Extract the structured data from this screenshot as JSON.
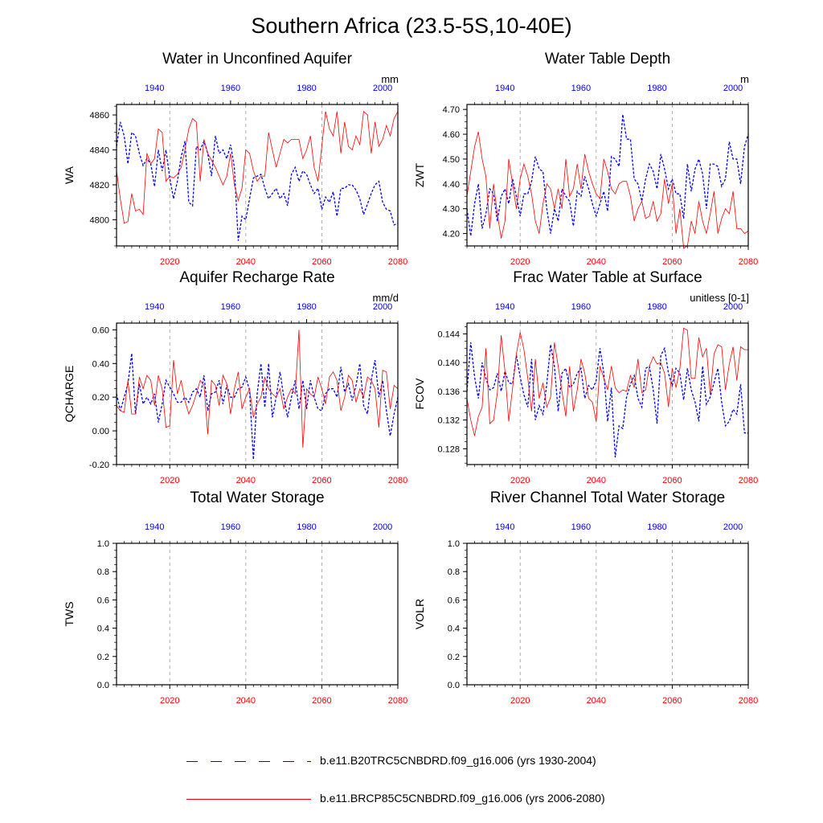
{
  "figure": {
    "title": "Southern Africa (23.5-5S,10-40E)",
    "colors": {
      "historical": "#0000ff",
      "future": "#ff0000",
      "axis": "#000000",
      "refline": "#999999"
    }
  },
  "legend": [
    {
      "label": "b.e11.B20TRC5CNBDRD.f09_g16.006 (yrs 1930-2004)",
      "color": "#0000ff",
      "style": "dashed"
    },
    {
      "label": "b.e11.BRCP85C5CNBDRD.f09_g16.006 (yrs 2006-2080)",
      "color": "#ff0000",
      "style": "solid"
    }
  ],
  "chart_data": [
    {
      "type": "line",
      "title": "Water in Unconfined Aquifer",
      "ylabel": "WA",
      "units": "mm",
      "ylim": [
        4785,
        4866
      ],
      "yticks": [
        4800,
        4820,
        4840,
        4860
      ],
      "yticklabels": [
        "4800",
        "4820",
        "4840",
        "4860"
      ],
      "xlim_bottom": [
        2006,
        2080
      ],
      "xticks_bottom": [
        2020,
        2040,
        2060,
        2080
      ],
      "xlim_top": [
        1930,
        2004
      ],
      "xticks_top": [
        1940,
        1960,
        1980,
        2000
      ],
      "ref_lines_x": [
        2020,
        2040,
        2060
      ],
      "series": [
        {
          "name": "b.e11.B20TRC5CNBDRD.f09_g16.006 (yrs 1930-2004)",
          "axis": "top",
          "color": "#0000ff",
          "dash": true,
          "x_start": 1930,
          "values": [
            4842,
            4856,
            4848,
            4832,
            4850,
            4848,
            4838,
            4831,
            4835,
            4832,
            4819,
            4840,
            4828,
            4840,
            4824,
            4812,
            4822,
            4836,
            4845,
            4810,
            4808,
            4842,
            4840,
            4845,
            4838,
            4825,
            4848,
            4838,
            4840,
            4835,
            4843,
            4830,
            4788,
            4802,
            4800,
            4812,
            4824,
            4825,
            4826,
            4818,
            4812,
            4815,
            4818,
            4812,
            4815,
            4808,
            4826,
            4830,
            4822,
            4828,
            4826,
            4820,
            4815,
            4818,
            4806,
            4813,
            4810,
            4816,
            4802,
            4818,
            4818,
            4820,
            4820,
            4817,
            4812,
            4803,
            4809,
            4815,
            4820,
            4822,
            4810,
            4806,
            4805,
            4797,
            4798
          ]
        },
        {
          "name": "b.e11.BRCP85C5CNBDRD.f09_g16.006 (yrs 2006-2080)",
          "axis": "bottom",
          "color": "#ff0000",
          "dash": false,
          "x_start": 2006,
          "values": [
            4828,
            4812,
            4798,
            4799,
            4815,
            4805,
            4806,
            4803,
            4838,
            4832,
            4835,
            4852,
            4850,
            4822,
            4825,
            4824,
            4826,
            4830,
            4840,
            4852,
            4858,
            4856,
            4822,
            4846,
            4838,
            4834,
            4830,
            4825,
            4820,
            4825,
            4838,
            4820,
            4811,
            4818,
            4840,
            4838,
            4828,
            4822,
            4825,
            4825,
            4850,
            4840,
            4830,
            4838,
            4846,
            4844,
            4846,
            4846,
            4846,
            4835,
            4840,
            4848,
            4830,
            4822,
            4842,
            4862,
            4852,
            4848,
            4862,
            4838,
            4856,
            4842,
            4840,
            4848,
            4843,
            4862,
            4860,
            4838,
            4856,
            4842,
            4846,
            4854,
            4848,
            4858,
            4862
          ]
        }
      ]
    },
    {
      "type": "line",
      "title": "Water Table Depth",
      "ylabel": "ZWT",
      "units": "m",
      "ylim": [
        4.15,
        4.72
      ],
      "yticks": [
        4.2,
        4.3,
        4.4,
        4.5,
        4.6,
        4.7
      ],
      "yticklabels": [
        "4.20",
        "4.30",
        "4.40",
        "4.50",
        "4.60",
        "4.70"
      ],
      "xlim_bottom": [
        2006,
        2080
      ],
      "xticks_bottom": [
        2020,
        2040,
        2060,
        2080
      ],
      "xlim_top": [
        1930,
        2004
      ],
      "xticks_top": [
        1940,
        1960,
        1980,
        2000
      ],
      "ref_lines_x": [
        2020,
        2040,
        2060
      ],
      "series": [
        {
          "name": "b.e11.B20TRC5CNBDRD.f09_g16.006 (yrs 1930-2004)",
          "axis": "top",
          "color": "#0000ff",
          "dash": true,
          "x_start": 1930,
          "values": [
            4.3,
            4.19,
            4.32,
            4.4,
            4.22,
            4.28,
            4.38,
            4.36,
            4.25,
            4.35,
            4.38,
            4.32,
            4.42,
            4.35,
            4.27,
            4.36,
            4.36,
            4.41,
            4.51,
            4.46,
            4.45,
            4.3,
            4.2,
            4.3,
            4.25,
            4.38,
            4.35,
            4.33,
            4.23,
            4.37,
            4.35,
            4.43,
            4.38,
            4.32,
            4.27,
            4.32,
            4.37,
            4.29,
            4.51,
            4.5,
            4.47,
            4.68,
            4.58,
            4.58,
            4.42,
            4.4,
            4.33,
            4.42,
            4.48,
            4.45,
            4.38,
            4.52,
            4.46,
            4.38,
            4.42,
            4.36,
            4.36,
            4.26,
            4.48,
            4.37,
            4.46,
            4.5,
            4.44,
            4.3,
            4.48,
            4.48,
            4.47,
            4.39,
            4.42,
            4.57,
            4.5,
            4.5,
            4.4,
            4.55,
            4.6
          ]
        },
        {
          "name": "b.e11.BRCP85C5CNBDRD.f09_g16.006 (yrs 2006-2080)",
          "axis": "bottom",
          "color": "#ff0000",
          "dash": false,
          "x_start": 2006,
          "values": [
            4.35,
            4.45,
            4.55,
            4.61,
            4.5,
            4.43,
            4.22,
            4.4,
            4.28,
            4.18,
            4.25,
            4.5,
            4.4,
            4.3,
            4.42,
            4.48,
            4.43,
            4.36,
            4.25,
            4.2,
            4.32,
            4.4,
            4.38,
            4.3,
            4.38,
            4.3,
            4.5,
            4.35,
            4.38,
            4.48,
            4.38,
            4.52,
            4.45,
            4.4,
            4.36,
            4.34,
            4.5,
            4.45,
            4.38,
            4.36,
            4.4,
            4.41,
            4.41,
            4.35,
            4.25,
            4.3,
            4.33,
            4.26,
            4.27,
            4.33,
            4.25,
            4.28,
            4.42,
            4.32,
            4.4,
            4.2,
            4.3,
            4.14,
            4.15,
            4.25,
            4.2,
            4.33,
            4.25,
            4.2,
            4.28,
            4.37,
            4.2,
            4.26,
            4.3,
            4.28,
            4.37,
            4.22,
            4.22,
            4.2,
            4.21
          ]
        }
      ]
    },
    {
      "type": "line",
      "title": "Aquifer Recharge Rate",
      "ylabel": "QCHARGE",
      "units": "mm/d",
      "ylim": [
        -0.2,
        0.64
      ],
      "yticks": [
        -0.2,
        0.0,
        0.2,
        0.4,
        0.6
      ],
      "yticklabels": [
        "-0.20",
        "0.00",
        "0.20",
        "0.40",
        "0.60"
      ],
      "xlim_bottom": [
        2006,
        2080
      ],
      "xticks_bottom": [
        2020,
        2040,
        2060,
        2080
      ],
      "xlim_top": [
        1930,
        2004
      ],
      "xticks_top": [
        1940,
        1960,
        1980,
        2000
      ],
      "ref_lines_x": [
        2020,
        2040,
        2060
      ],
      "series": [
        {
          "name": "b.e11.B20TRC5CNBDRD.f09_g16.006 (yrs 1930-2004)",
          "axis": "top",
          "color": "#0000ff",
          "dash": true,
          "x_start": 1930,
          "values": [
            0.22,
            0.12,
            0.2,
            0.28,
            0.46,
            0.1,
            0.28,
            0.16,
            0.2,
            0.16,
            0.22,
            0.05,
            0.16,
            0.3,
            0.26,
            0.22,
            0.17,
            0.17,
            0.2,
            0.17,
            0.23,
            0.25,
            0.2,
            0.33,
            0.12,
            0.22,
            0.23,
            0.3,
            0.16,
            0.27,
            0.2,
            0.2,
            0.25,
            0.26,
            0.32,
            0.24,
            -0.17,
            0.22,
            0.4,
            0.14,
            0.4,
            0.08,
            0.2,
            0.35,
            0.2,
            0.08,
            0.2,
            0.3,
            0.13,
            0.3,
            0.13,
            0.3,
            0.2,
            0.13,
            0.12,
            0.22,
            0.25,
            0.25,
            0.2,
            0.38,
            0.23,
            0.28,
            0.18,
            0.27,
            0.4,
            0.15,
            0.1,
            0.3,
            0.42,
            0.2,
            0.3,
            0.12,
            -0.03,
            0.1,
            0.2
          ]
        },
        {
          "name": "b.e11.BRCP85C5CNBDRD.f09_g16.006 (yrs 2006-2080)",
          "axis": "bottom",
          "color": "#ff0000",
          "dash": false,
          "x_start": 2006,
          "values": [
            0.15,
            0.12,
            0.11,
            0.3,
            0.1,
            0.1,
            0.32,
            0.25,
            0.33,
            0.3,
            0.15,
            0.33,
            0.25,
            0.02,
            0.03,
            0.42,
            0.22,
            0.3,
            0.18,
            0.1,
            0.15,
            0.22,
            0.3,
            0.27,
            -0.02,
            0.3,
            0.27,
            0.15,
            0.33,
            0.28,
            0.1,
            0.25,
            0.35,
            0.13,
            0.2,
            0.25,
            0.08,
            0.16,
            0.2,
            0.32,
            0.25,
            0.22,
            0.2,
            0.25,
            0.13,
            0.2,
            0.25,
            0.22,
            0.6,
            -0.1,
            0.25,
            0.22,
            0.2,
            0.32,
            0.25,
            0.16,
            0.32,
            0.35,
            0.3,
            0.12,
            0.2,
            0.33,
            0.3,
            0.17,
            0.25,
            0.2,
            0.32,
            0.3,
            0.25,
            0.02,
            0.36,
            0.35,
            0.13,
            0.27,
            0.25
          ]
        }
      ]
    },
    {
      "type": "line",
      "title": "Frac Water Table at Surface",
      "ylabel": "FCOV",
      "units": "unitless [0-1]",
      "ylim": [
        0.1258,
        0.1455
      ],
      "yticks": [
        0.128,
        0.132,
        0.136,
        0.14,
        0.144
      ],
      "yticklabels": [
        "0.128",
        "0.132",
        "0.136",
        "0.140",
        "0.144"
      ],
      "xlim_bottom": [
        2006,
        2080
      ],
      "xticks_bottom": [
        2020,
        2040,
        2060,
        2080
      ],
      "xlim_top": [
        1930,
        2004
      ],
      "xticks_top": [
        1940,
        1960,
        1980,
        2000
      ],
      "ref_lines_x": [
        2020,
        2040,
        2060
      ],
      "series": [
        {
          "name": "b.e11.B20TRC5CNBDRD.f09_g16.006 (yrs 1930-2004)",
          "axis": "top",
          "color": "#0000ff",
          "dash": true,
          "x_start": 1930,
          "values": [
            0.136,
            0.1428,
            0.138,
            0.135,
            0.14,
            0.1378,
            0.1362,
            0.1365,
            0.1385,
            0.136,
            0.1388,
            0.1372,
            0.137,
            0.141,
            0.138,
            0.1355,
            0.1338,
            0.1405,
            0.132,
            0.134,
            0.1328,
            0.137,
            0.1425,
            0.1395,
            0.1332,
            0.1385,
            0.1392,
            0.1365,
            0.137,
            0.1385,
            0.1392,
            0.135,
            0.1368,
            0.1362,
            0.1375,
            0.142,
            0.1385,
            0.1318,
            0.1365,
            0.1268,
            0.1312,
            0.1308,
            0.1352,
            0.137,
            0.1382,
            0.135,
            0.1338,
            0.1392,
            0.1395,
            0.1362,
            0.1315,
            0.141,
            0.142,
            0.1385,
            0.1368,
            0.1392,
            0.1385,
            0.1348,
            0.1392,
            0.1362,
            0.1345,
            0.1318,
            0.1395,
            0.1342,
            0.1352,
            0.1372,
            0.1392,
            0.1345,
            0.1312,
            0.1318,
            0.1335,
            0.1328,
            0.137,
            0.1302,
            0.1302
          ]
        },
        {
          "name": "b.e11.BRCP85C5CNBDRD.f09_g16.006 (yrs 2006-2080)",
          "axis": "bottom",
          "color": "#ff0000",
          "dash": false,
          "x_start": 2006,
          "values": [
            0.135,
            0.132,
            0.1298,
            0.1325,
            0.1338,
            0.142,
            0.1315,
            0.132,
            0.1358,
            0.1438,
            0.1388,
            0.1318,
            0.1365,
            0.1412,
            0.1442,
            0.1418,
            0.1378,
            0.1332,
            0.1405,
            0.135,
            0.1372,
            0.1338,
            0.1352,
            0.1428,
            0.1395,
            0.136,
            0.1325,
            0.1395,
            0.1332,
            0.1362,
            0.1405,
            0.1385,
            0.135,
            0.1345,
            0.1318,
            0.1395,
            0.1378,
            0.1362,
            0.1395,
            0.1365,
            0.1358,
            0.1362,
            0.136,
            0.1382,
            0.1365,
            0.1405,
            0.1358,
            0.1362,
            0.1395,
            0.1408,
            0.1398,
            0.14,
            0.1385,
            0.1338,
            0.1392,
            0.1365,
            0.1392,
            0.1448,
            0.1445,
            0.1378,
            0.1378,
            0.1435,
            0.1408,
            0.142,
            0.1355,
            0.1412,
            0.1425,
            0.1422,
            0.1362,
            0.1398,
            0.1422,
            0.1375,
            0.1422,
            0.1418,
            0.1418
          ]
        }
      ]
    },
    {
      "type": "line",
      "title": "Total Water Storage",
      "ylabel": "TWS",
      "units": "",
      "ylim": [
        0,
        1
      ],
      "yticks": [
        0.0,
        0.2,
        0.4,
        0.6,
        0.8,
        1.0
      ],
      "yticklabels": [
        "0.0",
        "0.2",
        "0.4",
        "0.6",
        "0.8",
        "1.0"
      ],
      "xlim_bottom": [
        2006,
        2080
      ],
      "xticks_bottom": [
        2020,
        2040,
        2060,
        2080
      ],
      "xlim_top": [
        1930,
        2004
      ],
      "xticks_top": [
        1940,
        1960,
        1980,
        2000
      ],
      "ref_lines_x": [
        2020,
        2040,
        2060
      ],
      "series": []
    },
    {
      "type": "line",
      "title": "River Channel Total Water Storage",
      "ylabel": "VOLR",
      "units": "",
      "ylim": [
        0,
        1
      ],
      "yticks": [
        0.0,
        0.2,
        0.4,
        0.6,
        0.8,
        1.0
      ],
      "yticklabels": [
        "0.0",
        "0.2",
        "0.4",
        "0.6",
        "0.8",
        "1.0"
      ],
      "xlim_bottom": [
        2006,
        2080
      ],
      "xticks_bottom": [
        2020,
        2040,
        2060,
        2080
      ],
      "xlim_top": [
        1930,
        2004
      ],
      "xticks_top": [
        1940,
        1960,
        1980,
        2000
      ],
      "ref_lines_x": [
        2020,
        2040,
        2060
      ],
      "series": []
    }
  ]
}
